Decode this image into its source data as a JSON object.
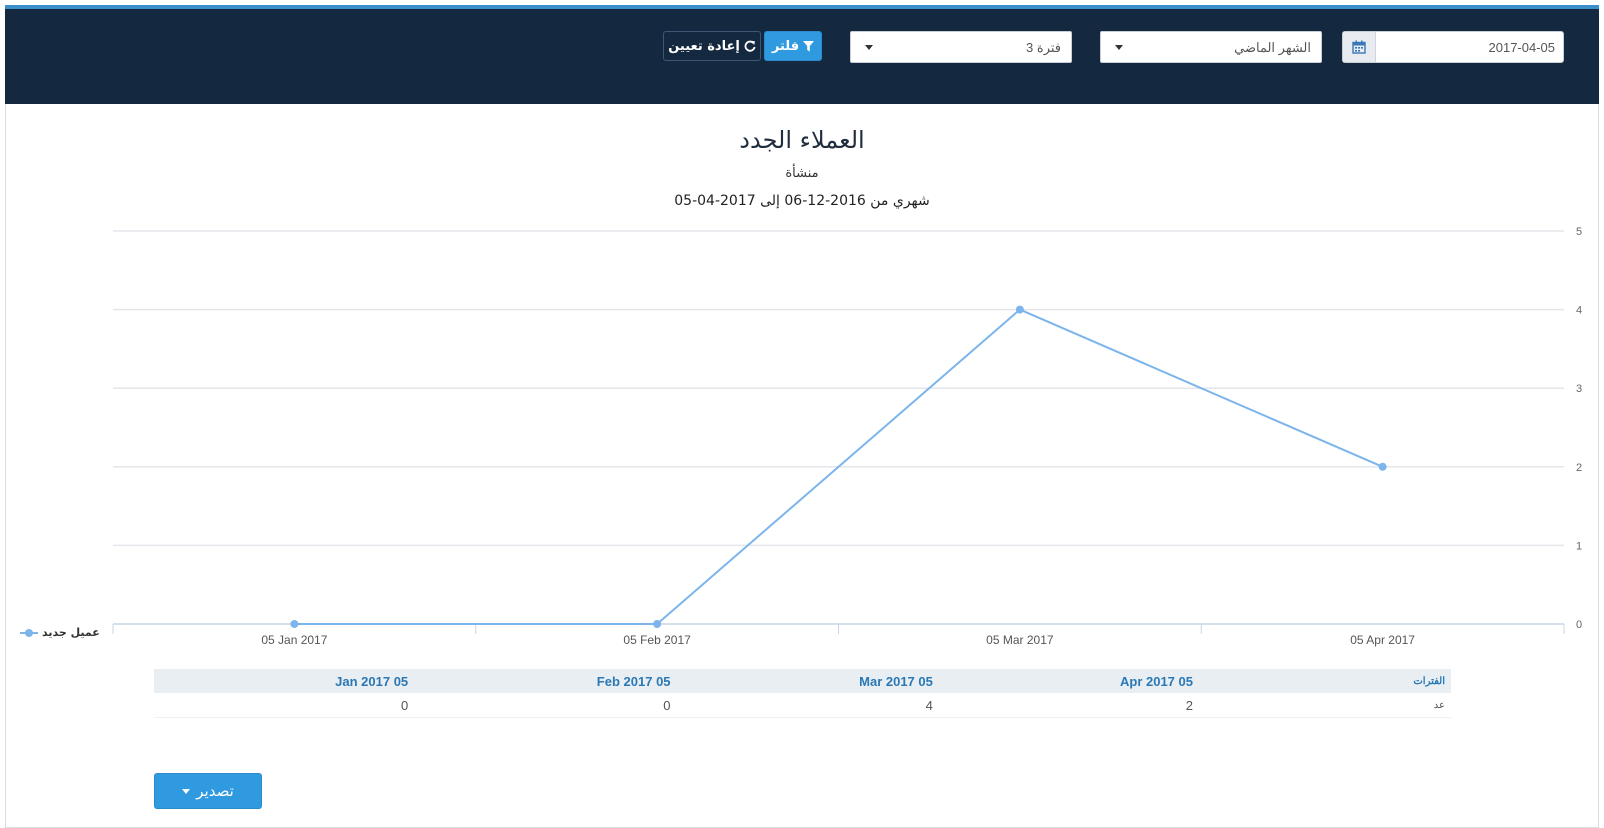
{
  "filters": {
    "date_value": "2017-04-05",
    "range_select": "الشهر الماضي",
    "period_select": "فترة 3",
    "filter_label": "فلتر",
    "reset_label": "إعادة تعيين"
  },
  "colors": {
    "header_bg": "#14293f",
    "accent": "#2f9ae0",
    "series": "#7cb5ec"
  },
  "legend": {
    "label": "عميل جديد"
  },
  "table": {
    "header_label": "الفترات",
    "row_label": "عد",
    "columns": [
      "05 Apr 2017",
      "05 Mar 2017",
      "05 Feb 2017",
      "05 Jan 2017"
    ],
    "values": [
      "2",
      "4",
      "0",
      "0"
    ]
  },
  "export_label": "تصدير",
  "chart_data": {
    "type": "line",
    "title": "العملاء الجدد",
    "subtitle": "منشأة",
    "period_text": "شهري من 2016-12-06 إلى 2017-04-05",
    "x": [
      "05 Jan 2017",
      "05 Feb 2017",
      "05 Mar 2017",
      "05 Apr 2017"
    ],
    "series": [
      {
        "name": "عميل جديد",
        "values": [
          0,
          0,
          4,
          2
        ]
      }
    ],
    "ylim": [
      0,
      5
    ],
    "yticks": [
      0,
      1,
      2,
      3,
      4,
      5
    ],
    "y_axis_position": "right",
    "grid": true,
    "legend_position": "left"
  }
}
